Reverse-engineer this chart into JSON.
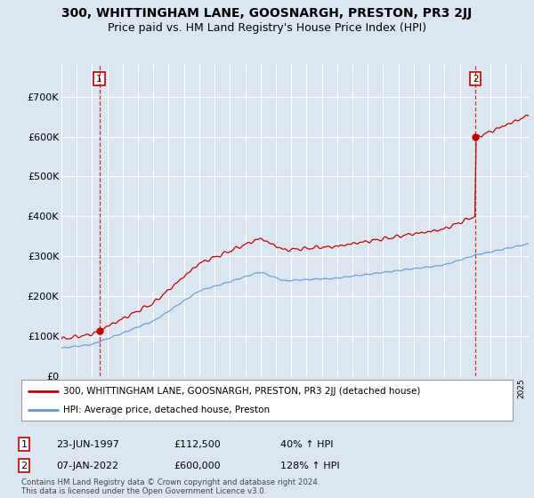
{
  "title": "300, WHITTINGHAM LANE, GOOSNARGH, PRESTON, PR3 2JJ",
  "subtitle": "Price paid vs. HM Land Registry's House Price Index (HPI)",
  "ylabel_ticks": [
    "£0",
    "£100K",
    "£200K",
    "£300K",
    "£400K",
    "£500K",
    "£600K",
    "£700K"
  ],
  "ytick_values": [
    0,
    100000,
    200000,
    300000,
    400000,
    500000,
    600000,
    700000
  ],
  "ylim": [
    0,
    780000
  ],
  "xlim_start": 1995.0,
  "xlim_end": 2025.5,
  "sale1_date": 1997.47,
  "sale1_price": 112500,
  "sale1_label": "1",
  "sale2_date": 2022.02,
  "sale2_price": 600000,
  "sale2_label": "2",
  "hpi_line_color": "#5B9BD5",
  "price_line_color": "#C00000",
  "dashed_line_color": "#C00000",
  "background_color": "#DCE6F1",
  "plot_bg_color": "#DCE6F1",
  "grid_color": "#AABBCC",
  "legend_label_price": "300, WHITTINGHAM LANE, GOOSNARGH, PRESTON, PR3 2JJ (detached house)",
  "legend_label_hpi": "HPI: Average price, detached house, Preston",
  "footer": "Contains HM Land Registry data © Crown copyright and database right 2024.\nThis data is licensed under the Open Government Licence v3.0.",
  "title_fontsize": 10,
  "subtitle_fontsize": 9
}
